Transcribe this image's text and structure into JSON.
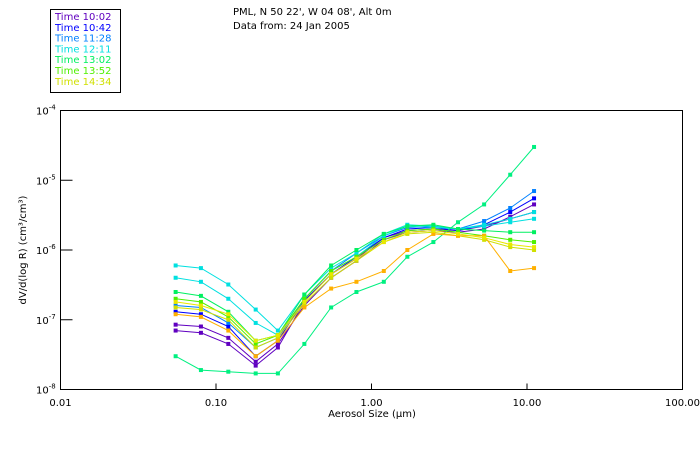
{
  "header": {
    "location": "PML, N 50 22', W 04 08', Alt 0m",
    "date": "Data from: 24 Jan 2005"
  },
  "chart_data": {
    "type": "line",
    "title": "PML, N 50 22', W 04 08', Alt 0m",
    "subtitle": "Data from: 24 Jan 2005",
    "xlabel": "Aerosol Size (µm)",
    "ylabel": "dV/d(log R) (cm³/cm³)",
    "xscale": "log",
    "yscale": "log",
    "xlim": [
      0.01,
      100
    ],
    "ylim": [
      1e-08,
      0.0001
    ],
    "xticks": [
      {
        "v": 0.01,
        "label": "0.01"
      },
      {
        "v": 0.1,
        "label": "0.10"
      },
      {
        "v": 1,
        "label": "1.00"
      },
      {
        "v": 10,
        "label": "10.00"
      },
      {
        "v": 100,
        "label": "100.00"
      }
    ],
    "yticks": [
      {
        "v": 0.0001,
        "exp": "-4"
      },
      {
        "v": 1e-05,
        "exp": "-5"
      },
      {
        "v": 1e-06,
        "exp": "-6"
      },
      {
        "v": 1e-07,
        "exp": "-7"
      },
      {
        "v": 1e-08,
        "exp": "-8"
      }
    ],
    "legend_position": "top-left, outside plot",
    "legend": [
      {
        "label": "Time 10:02",
        "color": "#6000c0"
      },
      {
        "label": "Time 10:42",
        "color": "#0000ff"
      },
      {
        "label": "Time 11:28",
        "color": "#0080ff"
      },
      {
        "label": "Time 12:11",
        "color": "#00e0e0"
      },
      {
        "label": "Time 13:02",
        "color": "#00f060"
      },
      {
        "label": "Time 13:52",
        "color": "#50f000"
      },
      {
        "label": "Time 14:34",
        "color": "#d0e000"
      }
    ],
    "x": [
      0.055,
      0.08,
      0.12,
      0.18,
      0.25,
      0.37,
      0.55,
      0.8,
      1.2,
      1.7,
      2.5,
      3.6,
      5.3,
      7.8,
      11.1
    ],
    "series": [
      {
        "name": "Time 10:02",
        "color": "#6000c0",
        "values": [
          8.5e-08,
          8e-08,
          5.5e-08,
          2.5e-08,
          4.5e-08,
          1.6e-07,
          4e-07,
          7e-07,
          1.4e-06,
          1.8e-06,
          1.9e-06,
          1.8e-06,
          2e-06,
          3e-06,
          4.5e-06
        ]
      },
      {
        "name": "Time 10:02",
        "color": "#6000c0",
        "values": [
          7e-08,
          6.5e-08,
          4.5e-08,
          2.2e-08,
          4e-08,
          1.8e-07,
          4.5e-07,
          7.5e-07,
          1.5e-06,
          1.9e-06,
          2e-06,
          1.9e-06,
          2.2e-06,
          2.8e-06,
          3.5e-06
        ]
      },
      {
        "name": "Time 10:42",
        "color": "#0000ff",
        "values": [
          1.3e-07,
          1.2e-07,
          8e-08,
          3e-08,
          5e-08,
          1.9e-07,
          4.5e-07,
          8e-07,
          1.5e-06,
          2e-06,
          2.1e-06,
          1.9e-06,
          2.3e-06,
          3.5e-06,
          5.5e-06
        ]
      },
      {
        "name": "Time 11:28",
        "color": "#0080ff",
        "values": [
          1.6e-07,
          1.5e-07,
          9e-08,
          4e-08,
          5.5e-08,
          2e-07,
          5e-07,
          9e-07,
          1.6e-06,
          2.1e-06,
          2.2e-06,
          2e-06,
          2.6e-06,
          4e-06,
          7e-06
        ]
      },
      {
        "name": "Time 12:11",
        "color": "#00e0e0",
        "values": [
          6e-07,
          5.5e-07,
          3.2e-07,
          1.4e-07,
          7e-08,
          2.3e-07,
          5.5e-07,
          9e-07,
          1.7e-06,
          2.3e-06,
          2.2e-06,
          2e-06,
          2.3e-06,
          2.8e-06,
          3.5e-06
        ]
      },
      {
        "name": "Time 12:11",
        "color": "#00e0e0",
        "values": [
          4e-07,
          3.5e-07,
          2e-07,
          9e-08,
          6e-08,
          2e-07,
          5e-07,
          8e-07,
          1.6e-06,
          2.2e-06,
          2.1e-06,
          2e-06,
          2.2e-06,
          2.5e-06,
          2.8e-06
        ]
      },
      {
        "name": "Time 13:02",
        "color": "#00f080",
        "values": [
          3e-08,
          1.9e-08,
          1.8e-08,
          1.7e-08,
          1.7e-08,
          4.5e-08,
          1.5e-07,
          2.5e-07,
          3.5e-07,
          8e-07,
          1.3e-06,
          2.5e-06,
          4.5e-06,
          1.2e-05,
          3e-05
        ]
      },
      {
        "name": "Time 13:02",
        "color": "#00f060",
        "values": [
          2.5e-07,
          2.2e-07,
          1.3e-07,
          5e-08,
          6e-08,
          2.3e-07,
          6e-07,
          1e-06,
          1.7e-06,
          2.2e-06,
          2.3e-06,
          2e-06,
          1.9e-06,
          1.8e-06,
          1.8e-06
        ]
      },
      {
        "name": "Time 13:52",
        "color": "#50f000",
        "values": [
          2e-07,
          1.8e-07,
          1.1e-07,
          4.5e-08,
          6e-08,
          2e-07,
          5e-07,
          8e-07,
          1.4e-06,
          1.9e-06,
          2e-06,
          1.8e-06,
          1.6e-06,
          1.4e-06,
          1.3e-06
        ]
      },
      {
        "name": "Time 14:34",
        "color": "#d0e000",
        "values": [
          1.5e-07,
          1.4e-07,
          1e-07,
          4e-08,
          5.5e-08,
          1.7e-07,
          4e-07,
          7e-07,
          1.3e-06,
          1.7e-06,
          1.8e-06,
          1.6e-06,
          1.4e-06,
          1.1e-06,
          1e-06
        ]
      },
      {
        "name": "Time 14:34",
        "color": "#ffb000",
        "values": [
          1.2e-07,
          1.1e-07,
          7e-08,
          3e-08,
          5e-08,
          1.5e-07,
          2.8e-07,
          3.5e-07,
          5e-07,
          1e-06,
          1.7e-06,
          1.6e-06,
          1.6e-06,
          5e-07,
          5.5e-07
        ]
      },
      {
        "name": "Time 14:34",
        "color": "#e8e800",
        "values": [
          1.8e-07,
          1.6e-07,
          1.2e-07,
          5e-08,
          6e-08,
          1.8e-07,
          4.5e-07,
          7.5e-07,
          1.3e-06,
          1.8e-06,
          1.9e-06,
          1.7e-06,
          1.5e-06,
          1.2e-06,
          1.1e-06
        ]
      }
    ]
  }
}
